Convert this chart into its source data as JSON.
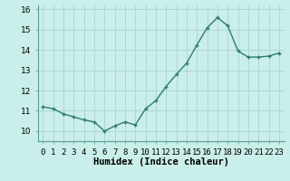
{
  "x": [
    0,
    1,
    2,
    3,
    4,
    5,
    6,
    7,
    8,
    9,
    10,
    11,
    12,
    13,
    14,
    15,
    16,
    17,
    18,
    19,
    20,
    21,
    22,
    23
  ],
  "y": [
    11.2,
    11.1,
    10.85,
    10.7,
    10.55,
    10.45,
    10.0,
    10.25,
    10.45,
    10.3,
    11.1,
    11.5,
    12.2,
    12.8,
    13.35,
    14.25,
    15.1,
    15.6,
    15.2,
    13.95,
    13.65,
    13.65,
    13.7,
    13.85
  ],
  "line_color": "#2d7d6e",
  "marker": "+",
  "marker_size": 3.5,
  "marker_linewidth": 1.0,
  "background_color": "#caeee9",
  "grid_color": "#aed8d2",
  "xlabel": "Humidex (Indice chaleur)",
  "xlim": [
    -0.5,
    23.5
  ],
  "ylim": [
    9.5,
    16.2
  ],
  "yticks": [
    10,
    11,
    12,
    13,
    14,
    15,
    16
  ],
  "xtick_labels": [
    "0",
    "1",
    "2",
    "3",
    "4",
    "5",
    "6",
    "7",
    "8",
    "9",
    "10",
    "11",
    "12",
    "13",
    "14",
    "15",
    "16",
    "17",
    "18",
    "19",
    "20",
    "21",
    "22",
    "23"
  ],
  "xlabel_fontsize": 7.5,
  "tick_fontsize": 6.5,
  "linewidth": 1.0
}
